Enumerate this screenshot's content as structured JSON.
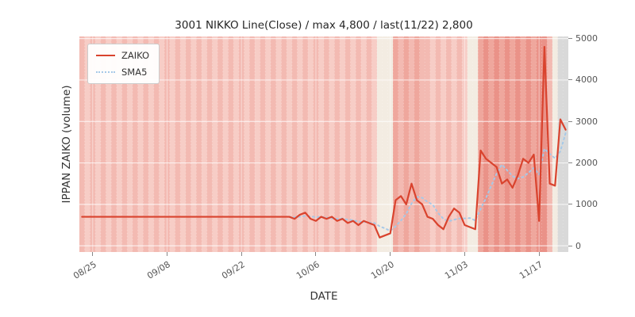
{
  "title": "3001 NIKKO Line(Close) / max 4,800 / last(11/22) 2,800",
  "axes": {
    "xlabel": "DATE",
    "ylabel": "IPPAN ZAIKO (volume)",
    "y_ticks": [
      0,
      1000,
      2000,
      3000,
      4000,
      5000
    ],
    "x_ticks": [
      {
        "label": "08/25",
        "index": 2
      },
      {
        "label": "09/08",
        "index": 16
      },
      {
        "label": "09/22",
        "index": 30
      },
      {
        "label": "10/06",
        "index": 44
      },
      {
        "label": "10/20",
        "index": 58
      },
      {
        "label": "11/03",
        "index": 72
      },
      {
        "label": "11/17",
        "index": 86
      }
    ]
  },
  "legend": {
    "position": "upper left",
    "entries": [
      {
        "label": "ZAIKO",
        "color": "#d9432e",
        "style": "solid"
      },
      {
        "label": "SMA5",
        "color": "#a6c9e8",
        "style": "dotted"
      }
    ]
  },
  "background": {
    "palette": {
      "0": "#f7cdc6",
      "1": "#f3bab2",
      "2": "#f3ece2",
      "3": "#efa79d",
      "4": "#ea9288",
      "5": "#d9d9d9"
    },
    "tones": "10101010101010101010101010101010101010101010101010101010222313131101010102234343434343441255"
  },
  "chart_data": {
    "type": "line",
    "title": "3001 NIKKO Line(Close) / max 4,800 / last(11/22) 2,800",
    "xlabel": "DATE",
    "ylabel": "IPPAN ZAIKO (volume)",
    "ylim": [
      0,
      5000
    ],
    "grid": true,
    "legend_position": "upper left",
    "max_value": 4800,
    "last_date": "11/22",
    "last_value": 2800,
    "x": [
      "08/23",
      "08/24",
      "08/25",
      "08/26",
      "08/27",
      "08/28",
      "08/29",
      "08/30",
      "08/31",
      "09/01",
      "09/02",
      "09/03",
      "09/04",
      "09/05",
      "09/06",
      "09/07",
      "09/08",
      "09/09",
      "09/10",
      "09/11",
      "09/12",
      "09/13",
      "09/14",
      "09/15",
      "09/16",
      "09/17",
      "09/18",
      "09/19",
      "09/20",
      "09/21",
      "09/22",
      "09/23",
      "09/24",
      "09/25",
      "09/26",
      "09/27",
      "09/28",
      "09/29",
      "09/30",
      "10/01",
      "10/02",
      "10/03",
      "10/04",
      "10/05",
      "10/06",
      "10/07",
      "10/08",
      "10/09",
      "10/10",
      "10/11",
      "10/12",
      "10/13",
      "10/14",
      "10/15",
      "10/16",
      "10/17",
      "10/18",
      "10/19",
      "10/20",
      "10/21",
      "10/22",
      "10/23",
      "10/24",
      "10/25",
      "10/26",
      "10/27",
      "10/28",
      "10/29",
      "10/30",
      "10/31",
      "11/01",
      "11/02",
      "11/03",
      "11/04",
      "11/05",
      "11/06",
      "11/07",
      "11/08",
      "11/09",
      "11/10",
      "11/11",
      "11/12",
      "11/13",
      "11/14",
      "11/15",
      "11/16",
      "11/17",
      "11/18",
      "11/19",
      "11/20",
      "11/21",
      "11/22"
    ],
    "series": [
      {
        "name": "ZAIKO",
        "color": "#d9432e",
        "style": "solid",
        "values": [
          700,
          700,
          700,
          700,
          700,
          700,
          700,
          700,
          700,
          700,
          700,
          700,
          700,
          700,
          700,
          700,
          700,
          700,
          700,
          700,
          700,
          700,
          700,
          700,
          700,
          700,
          700,
          700,
          700,
          700,
          700,
          700,
          700,
          700,
          700,
          700,
          700,
          700,
          700,
          700,
          650,
          750,
          800,
          650,
          600,
          700,
          650,
          700,
          600,
          650,
          550,
          600,
          500,
          600,
          550,
          500,
          200,
          250,
          300,
          1100,
          1200,
          1000,
          1500,
          1100,
          1000,
          700,
          650,
          500,
          400,
          700,
          900,
          800,
          500,
          450,
          400,
          2300,
          2100,
          2000,
          1900,
          1500,
          1600,
          1400,
          1700,
          2100,
          2000,
          2200,
          600,
          4800,
          1500,
          1450,
          3050,
          2800
        ]
      },
      {
        "name": "SMA5",
        "color": "#a6c9e8",
        "style": "dotted",
        "values": [
          null,
          null,
          null,
          null,
          700,
          700,
          700,
          700,
          700,
          700,
          700,
          700,
          700,
          700,
          700,
          700,
          700,
          700,
          700,
          700,
          700,
          700,
          700,
          700,
          700,
          700,
          700,
          700,
          700,
          700,
          700,
          700,
          700,
          700,
          700,
          700,
          700,
          700,
          700,
          700,
          690,
          700,
          720,
          710,
          690,
          700,
          680,
          660,
          650,
          660,
          630,
          620,
          580,
          580,
          560,
          550,
          470,
          420,
          360,
          470,
          610,
          770,
          1020,
          1180,
          1160,
          1060,
          990,
          790,
          650,
          590,
          630,
          660,
          660,
          670,
          610,
          890,
          1150,
          1450,
          1740,
          1960,
          1820,
          1680,
          1620,
          1660,
          1760,
          1880,
          1720,
          2340,
          2220,
          2110,
          2280,
          2720
        ]
      }
    ]
  }
}
